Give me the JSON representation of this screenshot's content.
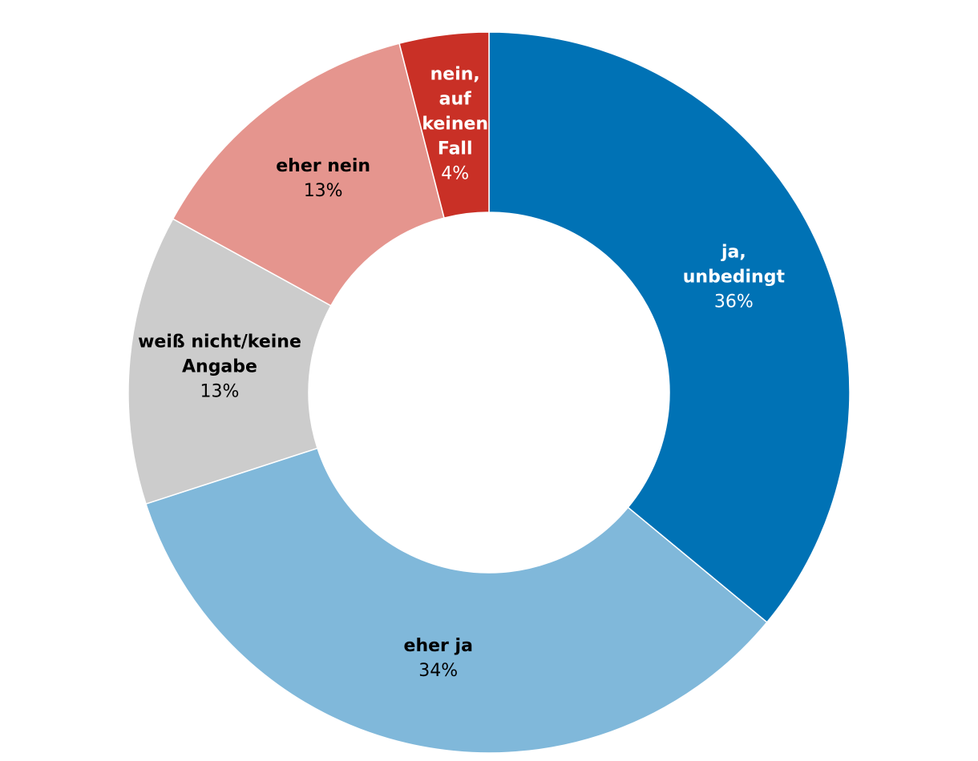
{
  "chart_data": {
    "type": "donut",
    "categories": [
      "ja, unbedingt",
      "eher ja",
      "weiß nicht/keine Angabe",
      "eher nein",
      "nein, auf keinen Fall"
    ],
    "values": [
      36,
      34,
      13,
      13,
      4
    ],
    "value_labels": [
      "36%",
      "34%",
      "13%",
      "13%",
      "4%"
    ],
    "colors": [
      "#0072b5",
      "#80b8da",
      "#cccccc",
      "#e5958e",
      "#c93026"
    ]
  }
}
